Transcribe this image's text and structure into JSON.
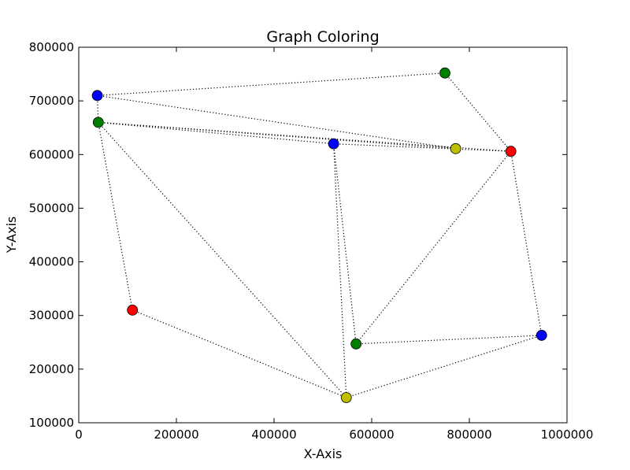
{
  "chart_data": {
    "type": "scatter",
    "title": "Graph Coloring",
    "xlabel": "X-Axis",
    "ylabel": "Y-Axis",
    "xlim": [
      0,
      1000000
    ],
    "ylim": [
      100000,
      800000
    ],
    "xticks": [
      0,
      200000,
      400000,
      600000,
      800000,
      1000000
    ],
    "xtick_labels": [
      "0",
      "200000",
      "400000",
      "600000",
      "800000",
      "1000000"
    ],
    "yticks": [
      100000,
      200000,
      300000,
      400000,
      500000,
      600000,
      700000,
      800000
    ],
    "ytick_labels": [
      "100000",
      "200000",
      "300000",
      "400000",
      "500000",
      "600000",
      "700000",
      "800000"
    ],
    "grid": false,
    "colors": {
      "blue": "#0000ff",
      "green": "#008000",
      "red": "#ff0000",
      "yellow": "#bfbf00"
    },
    "nodes": [
      {
        "x": 38000,
        "y": 710000,
        "color": "blue"
      },
      {
        "x": 750000,
        "y": 752000,
        "color": "green"
      },
      {
        "x": 40000,
        "y": 660000,
        "color": "green"
      },
      {
        "x": 522000,
        "y": 620000,
        "color": "blue"
      },
      {
        "x": 772000,
        "y": 611000,
        "color": "yellow"
      },
      {
        "x": 885000,
        "y": 606000,
        "color": "red"
      },
      {
        "x": 110000,
        "y": 310000,
        "color": "red"
      },
      {
        "x": 568000,
        "y": 247000,
        "color": "green"
      },
      {
        "x": 948000,
        "y": 263000,
        "color": "blue"
      },
      {
        "x": 548000,
        "y": 147000,
        "color": "yellow"
      }
    ],
    "edges": [
      [
        0,
        1
      ],
      [
        0,
        2
      ],
      [
        0,
        4
      ],
      [
        1,
        5
      ],
      [
        2,
        3
      ],
      [
        2,
        4
      ],
      [
        2,
        5
      ],
      [
        2,
        6
      ],
      [
        2,
        9
      ],
      [
        3,
        5
      ],
      [
        3,
        7
      ],
      [
        3,
        9
      ],
      [
        5,
        7
      ],
      [
        5,
        8
      ],
      [
        6,
        9
      ],
      [
        7,
        8
      ],
      [
        8,
        9
      ]
    ]
  }
}
